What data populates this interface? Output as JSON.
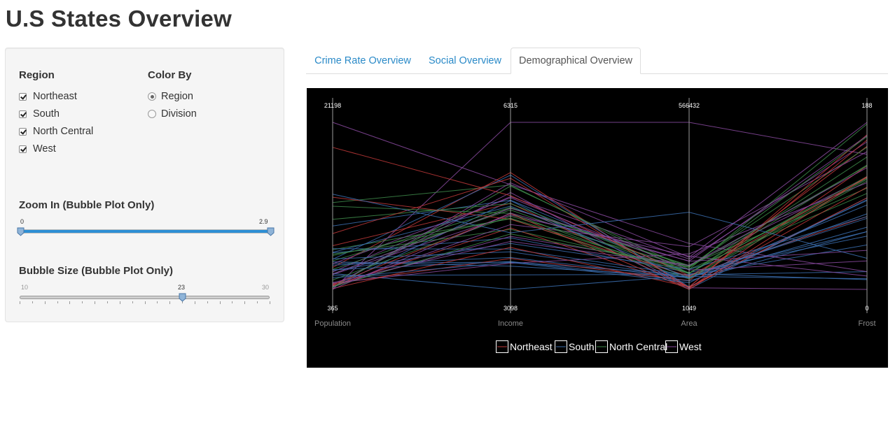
{
  "page": {
    "title": "U.S States Overview"
  },
  "sidebar": {
    "region": {
      "label": "Region",
      "options": [
        {
          "label": "Northeast",
          "checked": true
        },
        {
          "label": "South",
          "checked": true
        },
        {
          "label": "North Central",
          "checked": true
        },
        {
          "label": "West",
          "checked": true
        }
      ]
    },
    "color_by": {
      "label": "Color By",
      "options": [
        {
          "label": "Region",
          "selected": true
        },
        {
          "label": "Division",
          "selected": false
        }
      ]
    },
    "zoom": {
      "label": "Zoom In (Bubble Plot Only)",
      "min_label": "0",
      "max_label": "2.9",
      "min": 0,
      "max": 2.9,
      "value_low": 0,
      "value_high": 2.9
    },
    "bubble": {
      "label": "Bubble Size (Bubble Plot Only)",
      "min_label": "10",
      "max_label": "30",
      "value_label": "23",
      "min": 10,
      "max": 30,
      "value": 23
    }
  },
  "tabs": [
    {
      "label": "Crime Rate Overview",
      "active": false
    },
    {
      "label": "Social Overview",
      "active": false
    },
    {
      "label": "Demographical Overview",
      "active": true
    }
  ],
  "chart_data": {
    "type": "parallel-coordinates",
    "axes": [
      {
        "name": "Population",
        "max": 21198,
        "min": 365,
        "max_label": "21198",
        "min_label": "365"
      },
      {
        "name": "Income",
        "max": 6315,
        "min": 3098,
        "max_label": "6315",
        "min_label": "3098"
      },
      {
        "name": "Area",
        "max": 566432,
        "min": 1049,
        "max_label": "566432",
        "min_label": "1049"
      },
      {
        "name": "Frost",
        "max": 188,
        "min": 0,
        "max_label": "188",
        "min_label": "0"
      }
    ],
    "legend": [
      {
        "name": "Northeast",
        "color": "#c23a3a"
      },
      {
        "name": "South",
        "color": "#3b6fb0"
      },
      {
        "name": "North Central",
        "color": "#3e8a4a"
      },
      {
        "name": "West",
        "color": "#8a4aa0"
      }
    ],
    "series": [
      {
        "region": "South",
        "values": [
          3615,
          3624,
          50708,
          20
        ]
      },
      {
        "region": "West",
        "values": [
          365,
          6315,
          566432,
          152
        ]
      },
      {
        "region": "West",
        "values": [
          2212,
          4530,
          113417,
          15
        ]
      },
      {
        "region": "South",
        "values": [
          2110,
          3378,
          51945,
          65
        ]
      },
      {
        "region": "West",
        "values": [
          21198,
          5114,
          156361,
          20
        ]
      },
      {
        "region": "West",
        "values": [
          2541,
          4884,
          103766,
          166
        ]
      },
      {
        "region": "Northeast",
        "values": [
          3100,
          5348,
          4862,
          139
        ]
      },
      {
        "region": "South",
        "values": [
          579,
          4809,
          1982,
          103
        ]
      },
      {
        "region": "South",
        "values": [
          8277,
          4815,
          54090,
          11
        ]
      },
      {
        "region": "South",
        "values": [
          4931,
          4091,
          58073,
          60
        ]
      },
      {
        "region": "West",
        "values": [
          868,
          4963,
          6425,
          0
        ]
      },
      {
        "region": "West",
        "values": [
          813,
          4119,
          82677,
          126
        ]
      },
      {
        "region": "North Central",
        "values": [
          11197,
          5107,
          55748,
          127
        ]
      },
      {
        "region": "North Central",
        "values": [
          5313,
          4458,
          36097,
          122
        ]
      },
      {
        "region": "North Central",
        "values": [
          2861,
          4628,
          55941,
          140
        ]
      },
      {
        "region": "North Central",
        "values": [
          2280,
          4669,
          81787,
          114
        ]
      },
      {
        "region": "South",
        "values": [
          3387,
          3712,
          39650,
          95
        ]
      },
      {
        "region": "South",
        "values": [
          3806,
          3545,
          44930,
          12
        ]
      },
      {
        "region": "Northeast",
        "values": [
          1058,
          3694,
          30920,
          161
        ]
      },
      {
        "region": "South",
        "values": [
          4122,
          5299,
          9891,
          101
        ]
      },
      {
        "region": "Northeast",
        "values": [
          5814,
          4755,
          7826,
          103
        ]
      },
      {
        "region": "North Central",
        "values": [
          9111,
          4751,
          56817,
          125
        ]
      },
      {
        "region": "North Central",
        "values": [
          3921,
          4675,
          79289,
          160
        ]
      },
      {
        "region": "South",
        "values": [
          2341,
          3098,
          47296,
          50
        ]
      },
      {
        "region": "North Central",
        "values": [
          4767,
          4254,
          68995,
          108
        ]
      },
      {
        "region": "West",
        "values": [
          746,
          4347,
          145587,
          155
        ]
      },
      {
        "region": "North Central",
        "values": [
          1544,
          4508,
          76483,
          139
        ]
      },
      {
        "region": "West",
        "values": [
          590,
          5149,
          109889,
          188
        ]
      },
      {
        "region": "Northeast",
        "values": [
          812,
          4281,
          9027,
          174
        ]
      },
      {
        "region": "Northeast",
        "values": [
          7333,
          5237,
          7521,
          115
        ]
      },
      {
        "region": "West",
        "values": [
          1144,
          3601,
          121412,
          120
        ]
      },
      {
        "region": "Northeast",
        "values": [
          18076,
          4903,
          47831,
          82
        ]
      },
      {
        "region": "South",
        "values": [
          5441,
          3875,
          48798,
          80
        ]
      },
      {
        "region": "North Central",
        "values": [
          637,
          5087,
          69273,
          186
        ]
      },
      {
        "region": "North Central",
        "values": [
          10735,
          4561,
          40975,
          124
        ]
      },
      {
        "region": "South",
        "values": [
          2715,
          3983,
          68782,
          82
        ]
      },
      {
        "region": "West",
        "values": [
          2284,
          4660,
          96184,
          44
        ]
      },
      {
        "region": "Northeast",
        "values": [
          11860,
          4449,
          44966,
          126
        ]
      },
      {
        "region": "Northeast",
        "values": [
          931,
          4558,
          1049,
          127
        ]
      },
      {
        "region": "South",
        "values": [
          2816,
          3635,
          30225,
          65
        ]
      },
      {
        "region": "North Central",
        "values": [
          681,
          4167,
          75955,
          172
        ]
      },
      {
        "region": "South",
        "values": [
          4173,
          3821,
          41328,
          70
        ]
      },
      {
        "region": "South",
        "values": [
          12237,
          4188,
          262134,
          35
        ]
      },
      {
        "region": "West",
        "values": [
          1203,
          4022,
          82096,
          137
        ]
      },
      {
        "region": "Northeast",
        "values": [
          472,
          3907,
          9267,
          168
        ]
      },
      {
        "region": "South",
        "values": [
          4981,
          4701,
          39780,
          85
        ]
      },
      {
        "region": "West",
        "values": [
          3559,
          4864,
          66570,
          32
        ]
      },
      {
        "region": "South",
        "values": [
          1799,
          3617,
          24070,
          100
        ]
      },
      {
        "region": "North Central",
        "values": [
          4589,
          4468,
          54464,
          149
        ]
      },
      {
        "region": "West",
        "values": [
          376,
          4566,
          97203,
          173
        ]
      }
    ]
  }
}
